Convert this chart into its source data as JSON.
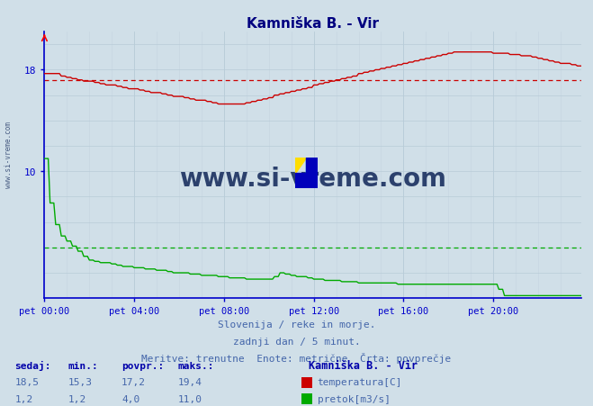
{
  "title": "Kamniška B. - Vir",
  "title_color": "#000080",
  "bg_color": "#d0dfe8",
  "plot_bg_color": "#d0dfe8",
  "grid_color_major": "#b8ccd8",
  "grid_color_minor": "#c4d4e0",
  "x_ticks_labels": [
    "pet 00:00",
    "pet 04:00",
    "pet 08:00",
    "pet 12:00",
    "pet 16:00",
    "pet 20:00"
  ],
  "x_ticks_pos": [
    0,
    48,
    96,
    144,
    192,
    240
  ],
  "y_ticks_shown": [
    10,
    18
  ],
  "y_lim": [
    0,
    21.0
  ],
  "x_lim": [
    0,
    287
  ],
  "temp_avg": 17.2,
  "flow_avg": 4.0,
  "temp_color": "#cc0000",
  "flow_color": "#00aa00",
  "axis_color": "#0000cc",
  "tick_color": "#336699",
  "label_color": "#4466aa",
  "watermark": "www.si-vreme.com",
  "watermark_color": "#1a3060",
  "subtitle1": "Slovenija / reke in morje.",
  "subtitle2": "zadnji dan / 5 minut.",
  "subtitle3": "Meritve: trenutne  Enote: metrične  Črta: povprečje",
  "legend_station": "Kamniška B. - Vir",
  "legend_temp_label": "temperatura[C]",
  "legend_flow_label": "pretok[m3/s]",
  "table_headers": [
    "sedaj:",
    "min.:",
    "povpr.:",
    "maks.:"
  ],
  "temp_row": [
    "18,5",
    "15,3",
    "17,2",
    "19,4"
  ],
  "flow_row": [
    "1,2",
    "1,2",
    "4,0",
    "11,0"
  ],
  "side_label": "www.si-vreme.com"
}
